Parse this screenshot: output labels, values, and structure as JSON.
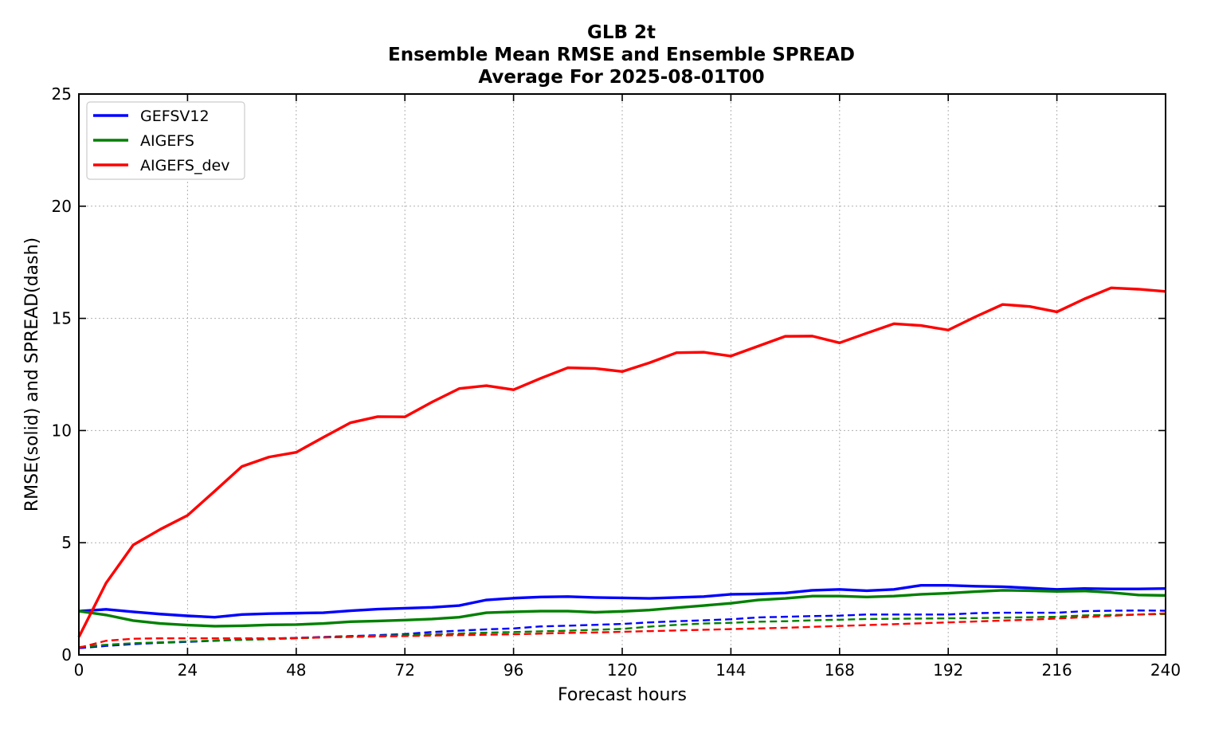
{
  "chart_data": {
    "type": "line",
    "title": [
      "GLB 2t",
      "Ensemble Mean RMSE and Ensemble SPREAD",
      "Average For 2025-08-01T00"
    ],
    "xlabel": "Forecast hours",
    "ylabel": "RMSE(solid) and SPREAD(dash)",
    "xlim": [
      0,
      240
    ],
    "ylim": [
      0,
      25
    ],
    "xticks": [
      0,
      24,
      48,
      72,
      96,
      120,
      144,
      168,
      192,
      216,
      240
    ],
    "yticks": [
      0,
      5,
      10,
      15,
      20,
      25
    ],
    "xtick_labels": [
      "0",
      "24",
      "48",
      "72",
      "96",
      "120",
      "144",
      "168",
      "192",
      "216",
      "240"
    ],
    "ytick_labels": [
      "0",
      "5",
      "10",
      "15",
      "20",
      "25"
    ],
    "grid": true,
    "legend_position": "top-left",
    "x": [
      0,
      6,
      12,
      18,
      24,
      30,
      36,
      42,
      48,
      54,
      60,
      66,
      72,
      78,
      84,
      90,
      96,
      102,
      108,
      114,
      120,
      126,
      132,
      138,
      144,
      150,
      156,
      162,
      168,
      174,
      180,
      186,
      192,
      198,
      204,
      210,
      216,
      222,
      228,
      234,
      240
    ],
    "series": [
      {
        "name": "GEFSV12",
        "color": "#0000ff",
        "rmse": [
          1.95,
          2.03,
          1.92,
          1.82,
          1.74,
          1.68,
          1.8,
          1.84,
          1.86,
          1.88,
          1.97,
          2.04,
          2.08,
          2.12,
          2.2,
          2.45,
          2.53,
          2.58,
          2.6,
          2.56,
          2.54,
          2.52,
          2.56,
          2.6,
          2.7,
          2.72,
          2.76,
          2.88,
          2.92,
          2.86,
          2.92,
          3.1,
          3.1,
          3.06,
          3.04,
          2.98,
          2.92,
          2.96,
          2.94,
          2.94,
          2.96
        ],
        "spread": [
          0.3,
          0.4,
          0.48,
          0.54,
          0.58,
          0.63,
          0.68,
          0.72,
          0.76,
          0.8,
          0.84,
          0.88,
          0.93,
          1.02,
          1.08,
          1.14,
          1.18,
          1.27,
          1.3,
          1.34,
          1.38,
          1.45,
          1.5,
          1.54,
          1.59,
          1.67,
          1.7,
          1.73,
          1.75,
          1.8,
          1.8,
          1.8,
          1.8,
          1.86,
          1.88,
          1.88,
          1.88,
          1.95,
          1.97,
          1.98,
          1.97
        ]
      },
      {
        "name": "AIGEFS",
        "color": "#008000",
        "rmse": [
          1.95,
          1.78,
          1.53,
          1.4,
          1.33,
          1.28,
          1.3,
          1.34,
          1.35,
          1.4,
          1.48,
          1.51,
          1.55,
          1.6,
          1.68,
          1.88,
          1.92,
          1.95,
          1.95,
          1.9,
          1.94,
          2.0,
          2.1,
          2.2,
          2.3,
          2.45,
          2.52,
          2.62,
          2.62,
          2.58,
          2.62,
          2.7,
          2.75,
          2.82,
          2.88,
          2.86,
          2.83,
          2.85,
          2.78,
          2.67,
          2.65
        ],
        "spread": [
          0.35,
          0.45,
          0.52,
          0.56,
          0.6,
          0.64,
          0.67,
          0.7,
          0.74,
          0.78,
          0.82,
          0.85,
          0.88,
          0.92,
          0.95,
          0.99,
          1.02,
          1.05,
          1.08,
          1.12,
          1.16,
          1.26,
          1.34,
          1.4,
          1.43,
          1.48,
          1.5,
          1.54,
          1.57,
          1.6,
          1.61,
          1.62,
          1.63,
          1.64,
          1.66,
          1.68,
          1.7,
          1.76,
          1.78,
          1.8,
          1.82
        ]
      },
      {
        "name": "AIGEFS_dev",
        "color": "#ff0000",
        "rmse": [
          0.8,
          3.2,
          4.9,
          5.6,
          6.22,
          7.3,
          8.4,
          8.82,
          9.03,
          9.7,
          10.35,
          10.62,
          10.61,
          11.27,
          11.87,
          12.0,
          11.82,
          12.33,
          12.8,
          12.77,
          12.63,
          13.02,
          13.47,
          13.49,
          13.32,
          13.76,
          14.2,
          14.21,
          13.91,
          14.34,
          14.76,
          14.68,
          14.48,
          15.07,
          15.62,
          15.53,
          15.29,
          15.86,
          16.36,
          16.3,
          16.2
        ],
        "spread": [
          0.32,
          0.63,
          0.72,
          0.74,
          0.74,
          0.74,
          0.74,
          0.74,
          0.75,
          0.78,
          0.8,
          0.82,
          0.84,
          0.86,
          0.88,
          0.9,
          0.92,
          0.95,
          0.98,
          1.0,
          1.03,
          1.06,
          1.09,
          1.12,
          1.15,
          1.18,
          1.21,
          1.25,
          1.29,
          1.33,
          1.37,
          1.41,
          1.45,
          1.49,
          1.53,
          1.57,
          1.62,
          1.68,
          1.74,
          1.8,
          1.85
        ]
      }
    ]
  }
}
